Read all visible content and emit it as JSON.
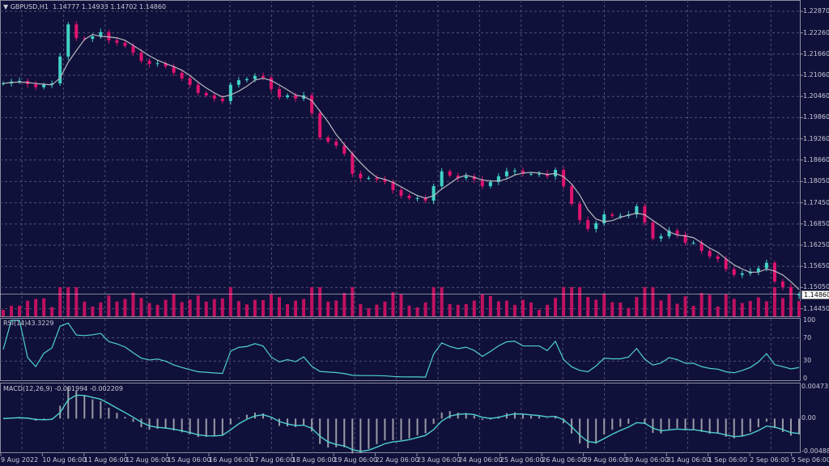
{
  "header": {
    "symbol": "GBPUSD,H1",
    "open": "1.14777",
    "high": "1.14933",
    "low": "1.14702",
    "close": "1.14860"
  },
  "colors": {
    "background": "#10113a",
    "bull": "#3fd3c6",
    "bear": "#e0126e",
    "grid": "#4e5070",
    "ma": "#b8b8c0",
    "volume": "#c0115f",
    "rsi": "#4fd0d0",
    "macd_line": "#4fd0d0",
    "macd_hist": "#9a9aa8"
  },
  "chart_data": [
    {
      "type": "candlestick",
      "name": "GBPUSD,H1",
      "ylim": [
        1.1445,
        1.2287
      ],
      "y_ticks": [
        "1.22870",
        "1.22260",
        "1.21660",
        "1.21060",
        "1.20460",
        "1.19860",
        "1.19260",
        "1.18660",
        "1.18050",
        "1.17450",
        "1.16850",
        "1.16250",
        "1.15650",
        "1.15050",
        "1.14450"
      ],
      "current_price": "1.14860",
      "x_ticks": [
        "9 Aug 2022",
        "10 Aug 06:00",
        "11 Aug 06:00",
        "12 Aug 06:00",
        "15 Aug 06:00",
        "16 Aug 06:00",
        "17 Aug 06:00",
        "18 Aug 06:00",
        "19 Aug 06:00",
        "22 Aug 06:00",
        "23 Aug 06:00",
        "24 Aug 06:00",
        "25 Aug 06:00",
        "26 Aug 06:00",
        "29 Aug 06:00",
        "30 Aug 06:00",
        "31 Aug 06:00",
        "1 Sep 06:00",
        "2 Sep 06:00",
        "5 Sep 06:00"
      ],
      "closes": [
        1.2083,
        1.2088,
        1.209,
        1.2081,
        1.2072,
        1.2079,
        1.2083,
        1.2159,
        1.225,
        1.2211,
        1.2209,
        1.2216,
        1.2228,
        1.2205,
        1.2198,
        1.2189,
        1.217,
        1.2147,
        1.2138,
        1.214,
        1.2131,
        1.2113,
        1.2097,
        1.2079,
        1.2056,
        1.2049,
        1.204,
        1.2033,
        1.2079,
        1.2092,
        1.2095,
        1.2104,
        1.2099,
        1.2067,
        1.2044,
        1.2049,
        1.204,
        1.2049,
        1.1999,
        1.193,
        1.1918,
        1.1907,
        1.1884,
        1.1827,
        1.1815,
        1.1815,
        1.1811,
        1.1804,
        1.1781,
        1.1765,
        1.1758,
        1.1758,
        1.1751,
        1.1792,
        1.1834,
        1.1822,
        1.1815,
        1.182,
        1.1811,
        1.1792,
        1.1804,
        1.182,
        1.1834,
        1.1836,
        1.1827,
        1.1827,
        1.1827,
        1.182,
        1.1838,
        1.1792,
        1.1742,
        1.1696,
        1.1671,
        1.1687,
        1.1712,
        1.1708,
        1.1708,
        1.1712,
        1.1735,
        1.1689,
        1.1644,
        1.165,
        1.1666,
        1.1655,
        1.1632,
        1.1632,
        1.1609,
        1.1593,
        1.1586,
        1.1557,
        1.1541,
        1.1545,
        1.155,
        1.1559,
        1.1575,
        1.1522,
        1.1506,
        1.1483,
        1.1486
      ]
    },
    {
      "type": "line",
      "name": "RSI(14)",
      "value": "43.3229",
      "ylim": [
        0,
        100
      ],
      "y_ticks": [
        "100",
        "70",
        "30",
        "0"
      ]
    },
    {
      "type": "bar+line",
      "name": "MACD(12,26,9)",
      "values": [
        "-0.001994",
        "-0.002209"
      ],
      "ylim": [
        -0.004887,
        0.004737
      ],
      "y_ticks": [
        "0.004737",
        "0.00",
        "-0.004887"
      ]
    }
  ]
}
